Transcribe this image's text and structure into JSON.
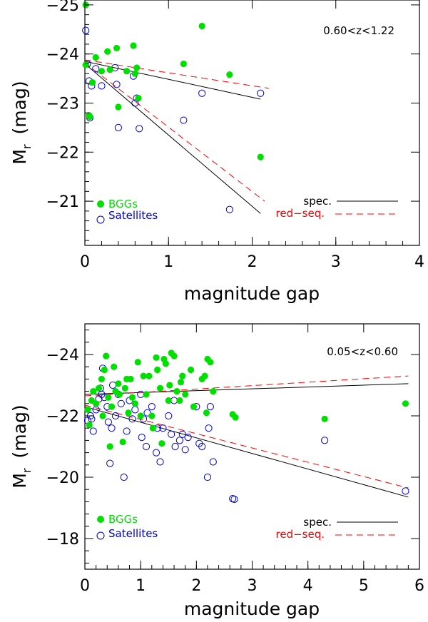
{
  "colors": {
    "bgg": "#00e000",
    "sat": "#0000cc",
    "spec": "#000000",
    "red": "#ff0000"
  },
  "chart_data": [
    {
      "type": "scatter",
      "annotation": "0.60<z<1.22",
      "xlabel": "magnitude gap",
      "ylabel_main": "M",
      "ylabel_sub": "r",
      "ylabel_unit": "(mag)",
      "xlim": [
        0,
        4
      ],
      "ylim": [
        -20.1,
        -25.1
      ],
      "xticks": [
        {
          "v": 0,
          "label": "0"
        },
        {
          "v": 1,
          "label": "1"
        },
        {
          "v": 2,
          "label": "2"
        },
        {
          "v": 3,
          "label": "3"
        },
        {
          "v": 4,
          "label": "4"
        }
      ],
      "yticks": [
        {
          "v": -21,
          "label": "−21"
        },
        {
          "v": -22,
          "label": "−22"
        },
        {
          "v": -23,
          "label": "−23"
        },
        {
          "v": -24,
          "label": "−24"
        },
        {
          "v": -25,
          "label": "−25"
        }
      ],
      "legend": {
        "bgg": "BGGs",
        "sat": "Satellites",
        "spec": "spec.",
        "red": "red−seq."
      },
      "bgg": [
        [
          0.01,
          -25.0
        ],
        [
          0.01,
          -23.78
        ],
        [
          0.05,
          -22.75
        ],
        [
          0.06,
          -22.72
        ],
        [
          0.09,
          -23.42
        ],
        [
          0.13,
          -23.93
        ],
        [
          0.2,
          -23.65
        ],
        [
          0.27,
          -24.05
        ],
        [
          0.3,
          -23.68
        ],
        [
          0.38,
          -24.12
        ],
        [
          0.4,
          -22.92
        ],
        [
          0.5,
          -23.65
        ],
        [
          0.58,
          -24.17
        ],
        [
          0.6,
          -23.6
        ],
        [
          0.62,
          -23.72
        ],
        [
          0.64,
          -23.1
        ],
        [
          1.18,
          -23.8
        ],
        [
          1.4,
          -24.57
        ],
        [
          1.73,
          -23.58
        ],
        [
          2.1,
          -21.9
        ]
      ],
      "sat": [
        [
          0.01,
          -24.48
        ],
        [
          0.03,
          -23.8
        ],
        [
          0.05,
          -23.45
        ],
        [
          0.06,
          -22.7
        ],
        [
          0.08,
          -23.35
        ],
        [
          0.13,
          -23.7
        ],
        [
          0.2,
          -23.35
        ],
        [
          0.36,
          -23.72
        ],
        [
          0.38,
          -23.38
        ],
        [
          0.4,
          -22.5
        ],
        [
          0.58,
          -23.55
        ],
        [
          0.6,
          -23.0
        ],
        [
          0.62,
          -23.1
        ],
        [
          0.65,
          -22.48
        ],
        [
          1.18,
          -22.65
        ],
        [
          1.4,
          -23.2
        ],
        [
          1.73,
          -20.83
        ],
        [
          2.1,
          -23.2
        ]
      ],
      "spec_lines": [
        [
          [
            0.0,
            -23.85
          ],
          [
            2.1,
            -23.08
          ]
        ],
        [
          [
            0.0,
            -23.8
          ],
          [
            2.1,
            -20.75
          ]
        ]
      ],
      "red_lines": [
        [
          [
            0.0,
            -23.88
          ],
          [
            2.2,
            -23.3
          ]
        ],
        [
          [
            0.0,
            -23.82
          ],
          [
            2.15,
            -21.0
          ]
        ]
      ]
    },
    {
      "type": "scatter",
      "annotation": "0.05<z<0.60",
      "xlabel": "magnitude gap",
      "ylabel_main": "M",
      "ylabel_sub": "r",
      "ylabel_unit": "(mag)",
      "xlim": [
        0,
        6
      ],
      "ylim": [
        -17.0,
        -25.0
      ],
      "xticks": [
        {
          "v": 0,
          "label": "0"
        },
        {
          "v": 1,
          "label": "1"
        },
        {
          "v": 2,
          "label": "2"
        },
        {
          "v": 3,
          "label": "3"
        },
        {
          "v": 4,
          "label": "4"
        },
        {
          "v": 5,
          "label": "5"
        },
        {
          "v": 6,
          "label": "6"
        }
      ],
      "yticks": [
        {
          "v": -18,
          "label": "−18"
        },
        {
          "v": -20,
          "label": "−20"
        },
        {
          "v": -22,
          "label": "−22"
        },
        {
          "v": -24,
          "label": "−24"
        }
      ],
      "legend": {
        "bgg": "BGGs",
        "sat": "Satellites",
        "spec": "spec.",
        "red": "red−seq."
      },
      "bgg": [
        [
          0.05,
          -22.2
        ],
        [
          0.08,
          -21.7
        ],
        [
          0.12,
          -22.5
        ],
        [
          0.15,
          -22.8
        ],
        [
          0.2,
          -22.4
        ],
        [
          0.25,
          -22.9
        ],
        [
          0.3,
          -23.2
        ],
        [
          0.32,
          -22.0
        ],
        [
          0.35,
          -23.5
        ],
        [
          0.38,
          -23.95
        ],
        [
          0.42,
          -22.6
        ],
        [
          0.45,
          -21.0
        ],
        [
          0.48,
          -22.3
        ],
        [
          0.52,
          -23.6
        ],
        [
          0.55,
          -22.8
        ],
        [
          0.6,
          -23.05
        ],
        [
          0.62,
          -22.7
        ],
        [
          0.68,
          -21.15
        ],
        [
          0.72,
          -22.9
        ],
        [
          0.75,
          -23.2
        ],
        [
          0.78,
          -22.1
        ],
        [
          0.82,
          -23.2
        ],
        [
          0.85,
          -22.6
        ],
        [
          0.9,
          -22.4
        ],
        [
          0.95,
          -23.75
        ],
        [
          1.0,
          -22.0
        ],
        [
          1.05,
          -23.3
        ],
        [
          1.1,
          -22.7
        ],
        [
          1.15,
          -23.3
        ],
        [
          1.2,
          -22.0
        ],
        [
          1.22,
          -21.6
        ],
        [
          1.28,
          -23.9
        ],
        [
          1.3,
          -23.5
        ],
        [
          1.35,
          -22.9
        ],
        [
          1.38,
          -21.1
        ],
        [
          1.42,
          -23.85
        ],
        [
          1.45,
          -23.7
        ],
        [
          1.5,
          -22.5
        ],
        [
          1.52,
          -23.0
        ],
        [
          1.55,
          -24.05
        ],
        [
          1.6,
          -23.95
        ],
        [
          1.65,
          -22.8
        ],
        [
          1.7,
          -22.5
        ],
        [
          1.72,
          -23.1
        ],
        [
          1.75,
          -23.3
        ],
        [
          1.8,
          -22.7
        ],
        [
          1.9,
          -23.5
        ],
        [
          1.95,
          -22.3
        ],
        [
          2.1,
          -23.2
        ],
        [
          2.15,
          -23.3
        ],
        [
          2.18,
          -22.1
        ],
        [
          2.2,
          -23.85
        ],
        [
          2.25,
          -23.75
        ],
        [
          2.3,
          -22.8
        ],
        [
          2.65,
          -22.05
        ],
        [
          2.7,
          -21.95
        ],
        [
          4.3,
          -21.9
        ],
        [
          5.75,
          -22.4
        ]
      ],
      "sat": [
        [
          0.05,
          -21.85
        ],
        [
          0.1,
          -22.0
        ],
        [
          0.12,
          -21.9
        ],
        [
          0.15,
          -21.5
        ],
        [
          0.2,
          -22.2
        ],
        [
          0.25,
          -22.55
        ],
        [
          0.28,
          -22.9
        ],
        [
          0.3,
          -22.7
        ],
        [
          0.32,
          -23.55
        ],
        [
          0.35,
          -22.6
        ],
        [
          0.4,
          -22.3
        ],
        [
          0.42,
          -21.8
        ],
        [
          0.45,
          -20.45
        ],
        [
          0.48,
          -21.6
        ],
        [
          0.5,
          -23.0
        ],
        [
          0.55,
          -22.0
        ],
        [
          0.6,
          -22.7
        ],
        [
          0.65,
          -22.4
        ],
        [
          0.7,
          -20.0
        ],
        [
          0.75,
          -21.5
        ],
        [
          0.8,
          -22.5
        ],
        [
          0.85,
          -21.9
        ],
        [
          0.9,
          -22.2
        ],
        [
          1.0,
          -22.7
        ],
        [
          1.02,
          -21.3
        ],
        [
          1.05,
          -21.9
        ],
        [
          1.1,
          -21.0
        ],
        [
          1.12,
          -22.1
        ],
        [
          1.2,
          -22.3
        ],
        [
          1.28,
          -20.8
        ],
        [
          1.3,
          -21.6
        ],
        [
          1.35,
          -20.5
        ],
        [
          1.4,
          -21.6
        ],
        [
          1.5,
          -22.0
        ],
        [
          1.55,
          -21.4
        ],
        [
          1.6,
          -22.5
        ],
        [
          1.62,
          -21.0
        ],
        [
          1.7,
          -21.2
        ],
        [
          1.75,
          -21.4
        ],
        [
          1.8,
          -20.9
        ],
        [
          1.85,
          -21.3
        ],
        [
          2.0,
          -22.3
        ],
        [
          2.05,
          -21.1
        ],
        [
          2.1,
          -21.0
        ],
        [
          2.2,
          -20.0
        ],
        [
          2.22,
          -21.6
        ],
        [
          2.25,
          -22.3
        ],
        [
          2.3,
          -20.5
        ],
        [
          2.65,
          -19.3
        ],
        [
          2.68,
          -19.28
        ],
        [
          4.3,
          -21.2
        ],
        [
          5.75,
          -19.55
        ]
      ],
      "spec_lines": [
        [
          [
            0.0,
            -22.7
          ],
          [
            5.8,
            -23.05
          ]
        ],
        [
          [
            0.0,
            -22.3
          ],
          [
            5.8,
            -19.35
          ]
        ]
      ],
      "red_lines": [
        [
          [
            0.0,
            -22.65
          ],
          [
            5.8,
            -23.3
          ]
        ],
        [
          [
            0.0,
            -22.35
          ],
          [
            5.8,
            -19.65
          ]
        ]
      ]
    }
  ]
}
